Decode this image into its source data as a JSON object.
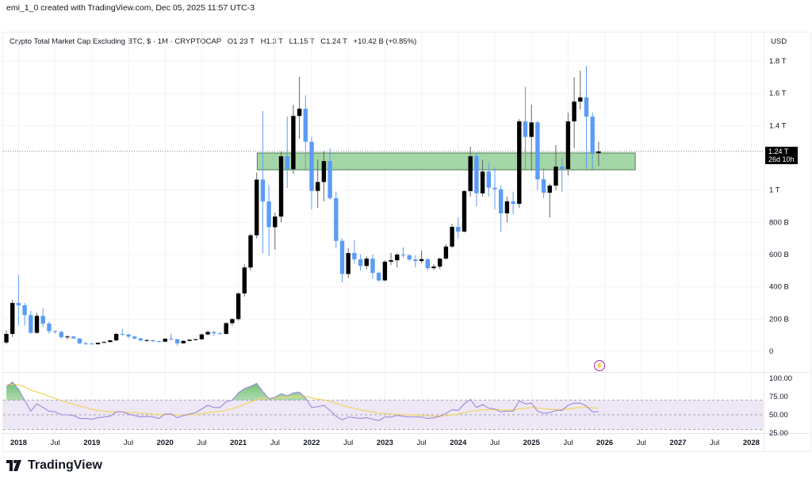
{
  "credit": "emi_1_0 created with TradingView.com, Dec 05, 2025 11:57 UTC-3",
  "legend": {
    "symbol": "Crypto Total Market Cap Excluding BTC, $ · 1M · CRYPTOCAP",
    "open": "O1.23 T",
    "high": "H1.3 T",
    "low": "L1.15 T",
    "close": "C1.24 T",
    "change": "+10.42 B (+0.85%)"
  },
  "currency": "USD",
  "last_price": {
    "value": "1.24 T",
    "countdown": "26d 10h"
  },
  "logo_text": "TradingView",
  "colors": {
    "up": "#000000",
    "down": "#5b9cf6",
    "zone": "#a5d6a7",
    "zone_border": "#4c7f4e",
    "rsi": "#9c89d6",
    "rsi_ma": "#f5d56a",
    "rsi_band": "#ede7f6"
  },
  "chart_data": [
    {
      "type": "candlestick",
      "title": "Crypto Total Market Cap Excluding BTC, $ · 1M · CRYPTOCAP",
      "unit": "B USD",
      "start_month": "2017-11",
      "ohlc": [
        [
          55,
          130,
          45,
          108
        ],
        [
          108,
          320,
          90,
          300
        ],
        [
          300,
          475,
          160,
          285
        ],
        [
          285,
          300,
          160,
          225
        ],
        [
          225,
          250,
          110,
          115
        ],
        [
          115,
          240,
          110,
          220
        ],
        [
          220,
          270,
          150,
          172
        ],
        [
          172,
          185,
          110,
          125
        ],
        [
          125,
          130,
          110,
          120
        ],
        [
          120,
          128,
          80,
          88
        ],
        [
          88,
          100,
          75,
          92
        ],
        [
          92,
          95,
          78,
          80
        ],
        [
          80,
          82,
          45,
          50
        ],
        [
          50,
          60,
          40,
          48
        ],
        [
          48,
          52,
          42,
          44
        ],
        [
          44,
          56,
          42,
          53
        ],
        [
          53,
          62,
          50,
          58
        ],
        [
          58,
          72,
          55,
          68
        ],
        [
          68,
          115,
          65,
          108
        ],
        [
          108,
          140,
          95,
          104
        ],
        [
          104,
          110,
          80,
          92
        ],
        [
          92,
          96,
          74,
          80
        ],
        [
          80,
          84,
          62,
          68
        ],
        [
          68,
          74,
          60,
          70
        ],
        [
          70,
          72,
          58,
          63
        ],
        [
          63,
          66,
          55,
          60
        ],
        [
          60,
          82,
          58,
          78
        ],
        [
          78,
          110,
          70,
          75
        ],
        [
          75,
          78,
          35,
          50
        ],
        [
          50,
          68,
          48,
          65
        ],
        [
          65,
          76,
          62,
          72
        ],
        [
          72,
          80,
          68,
          75
        ],
        [
          75,
          110,
          72,
          105
        ],
        [
          105,
          128,
          100,
          120
        ],
        [
          120,
          125,
          95,
          112
        ],
        [
          112,
          120,
          105,
          108
        ],
        [
          108,
          180,
          105,
          175
        ],
        [
          175,
          205,
          160,
          200
        ],
        [
          200,
          365,
          190,
          359
        ],
        [
          359,
          540,
          340,
          520
        ],
        [
          520,
          730,
          500,
          720
        ],
        [
          720,
          1110,
          700,
          1065
        ],
        [
          1065,
          1490,
          610,
          930
        ],
        [
          930,
          1033,
          590,
          770
        ],
        [
          770,
          860,
          630,
          836
        ],
        [
          836,
          1240,
          800,
          1210
        ],
        [
          1210,
          1456,
          1013,
          1130
        ],
        [
          1130,
          1530,
          1100,
          1460
        ],
        [
          1460,
          1702,
          1318,
          1505
        ],
        [
          1505,
          1589,
          1121,
          1300
        ],
        [
          1300,
          1330,
          880,
          995
        ],
        [
          995,
          1190,
          890,
          1050
        ],
        [
          1050,
          1240,
          930,
          1180
        ],
        [
          1180,
          1260,
          940,
          950
        ],
        [
          950,
          990,
          640,
          685
        ],
        [
          685,
          700,
          428,
          480
        ],
        [
          480,
          640,
          455,
          610
        ],
        [
          610,
          690,
          545,
          571
        ],
        [
          571,
          600,
          500,
          530
        ],
        [
          530,
          590,
          510,
          575
        ],
        [
          575,
          600,
          450,
          487
        ],
        [
          487,
          495,
          430,
          440
        ],
        [
          440,
          565,
          436,
          556
        ],
        [
          556,
          610,
          535,
          565
        ],
        [
          565,
          610,
          520,
          600
        ],
        [
          600,
          645,
          580,
          595
        ],
        [
          595,
          605,
          560,
          570
        ],
        [
          570,
          595,
          520,
          560
        ],
        [
          560,
          625,
          545,
          572
        ],
        [
          572,
          575,
          500,
          516
        ],
        [
          516,
          540,
          505,
          526
        ],
        [
          526,
          580,
          510,
          575
        ],
        [
          575,
          665,
          570,
          650
        ],
        [
          650,
          790,
          640,
          772
        ],
        [
          772,
          830,
          700,
          743
        ],
        [
          743,
          1000,
          738,
          994
        ],
        [
          994,
          1269,
          960,
          1210
        ],
        [
          1210,
          1230,
          900,
          980
        ],
        [
          980,
          1190,
          960,
          1115
        ],
        [
          1115,
          1170,
          960,
          1015
        ],
        [
          1015,
          1140,
          880,
          1005
        ],
        [
          1005,
          1030,
          740,
          856
        ],
        [
          856,
          960,
          800,
          930
        ],
        [
          930,
          990,
          850,
          915
        ],
        [
          915,
          1440,
          890,
          1426
        ],
        [
          1426,
          1640,
          1130,
          1330
        ],
        [
          1330,
          1530,
          1120,
          1420
        ],
        [
          1420,
          1430,
          1000,
          1067
        ],
        [
          1067,
          1140,
          950,
          984
        ],
        [
          984,
          1040,
          830,
          1028
        ],
        [
          1028,
          1280,
          1000,
          1146
        ],
        [
          1146,
          1200,
          990,
          1131
        ],
        [
          1131,
          1480,
          1090,
          1426
        ],
        [
          1426,
          1700,
          1260,
          1549
        ],
        [
          1549,
          1740,
          1500,
          1575
        ],
        [
          1575,
          1770,
          1130,
          1456
        ],
        [
          1456,
          1480,
          1130,
          1230
        ],
        [
          1230,
          1300,
          1150,
          1240
        ]
      ],
      "zone": {
        "low": 1126,
        "high": 1230,
        "from": "2021-05",
        "to": "2026-06"
      },
      "last_close": 1240,
      "ylim": [
        0,
        1800
      ],
      "price_ticks": [
        {
          "label": "1.8 T",
          "value": 1800
        },
        {
          "label": "1.6 T",
          "value": 1600
        },
        {
          "label": "1.4 T",
          "value": 1400
        },
        {
          "label": "1 T",
          "value": 1000
        },
        {
          "label": "800 B",
          "value": 800
        },
        {
          "label": "600 B",
          "value": 600
        },
        {
          "label": "400 B",
          "value": 400
        },
        {
          "label": "200 B",
          "value": 200
        },
        {
          "label": "0",
          "value": 0
        }
      ]
    },
    {
      "type": "line",
      "title": "RSI",
      "start_month": "2017-11",
      "rsi": [
        88,
        95,
        85,
        70,
        55,
        65,
        60,
        55,
        54,
        50,
        50,
        49,
        45,
        45,
        44,
        46,
        47,
        48,
        54,
        54,
        51,
        49,
        47,
        48,
        47,
        45,
        51,
        51,
        46,
        49,
        51,
        53,
        58,
        63,
        60,
        60,
        68,
        70,
        80,
        86,
        89,
        93,
        82,
        72,
        74,
        79,
        76,
        80,
        81,
        73,
        60,
        61,
        63,
        56,
        48,
        43,
        47,
        46,
        45,
        46,
        44,
        42,
        47,
        47,
        49,
        48,
        47,
        47,
        47,
        45,
        46,
        48,
        52,
        57,
        56,
        65,
        71,
        60,
        64,
        59,
        58,
        54,
        55,
        55,
        69,
        65,
        66,
        55,
        52,
        53,
        56,
        56,
        63,
        66,
        66,
        62,
        54,
        54
      ],
      "bands": [
        70,
        50,
        30
      ],
      "ylim": [
        25,
        100
      ],
      "ticks": [
        {
          "label": "100.00",
          "value": 100
        },
        {
          "label": "75.00",
          "value": 75
        },
        {
          "label": "50.00",
          "value": 50
        },
        {
          "label": "25.00",
          "value": 25
        }
      ]
    }
  ],
  "time_axis": [
    "2018",
    "Jul",
    "2019",
    "Jul",
    "2020",
    "Jul",
    "2021",
    "Jul",
    "2022",
    "Jul",
    "2023",
    "Jul",
    "2024",
    "Jul",
    "2025",
    "Jul",
    "2026",
    "Jul",
    "2027",
    "Jul",
    "2028"
  ]
}
